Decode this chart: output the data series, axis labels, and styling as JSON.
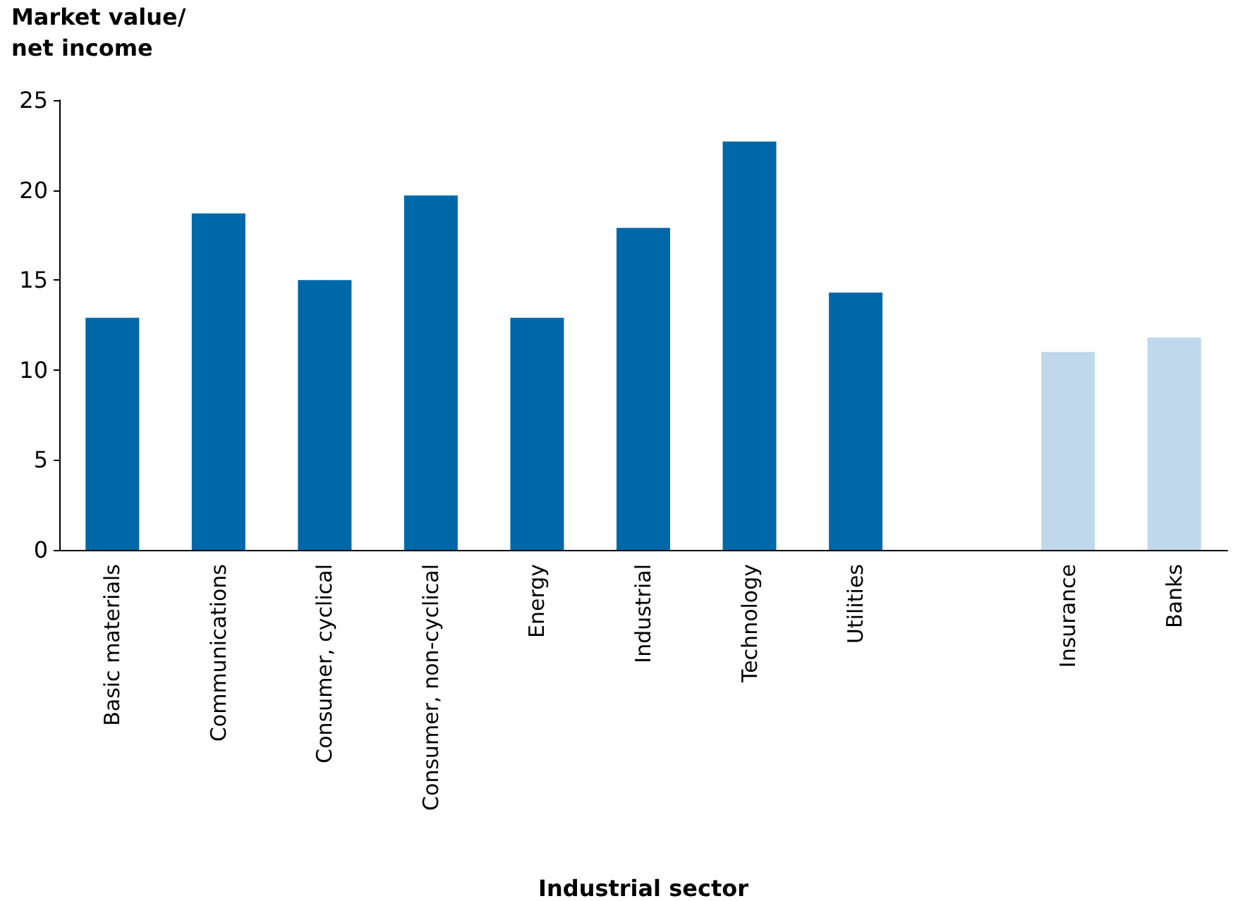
{
  "chart_data": {
    "type": "bar",
    "ylabel": "Market value/\nnet income",
    "xlabel": "Industrial sector",
    "categories": [
      "Basic materials",
      "Communications",
      "Consumer, cyclical",
      "Consumer, non-cyclical",
      "Energy",
      "Industrial",
      "Technology",
      "Utilities",
      null,
      "Insurance",
      "Banks"
    ],
    "values": [
      12.9,
      18.7,
      15.0,
      19.7,
      12.9,
      17.9,
      22.7,
      14.3,
      null,
      11.0,
      11.8
    ],
    "colors": [
      "#0068a8",
      "#0068a8",
      "#0068a8",
      "#0068a8",
      "#0068a8",
      "#0068a8",
      "#0068a8",
      "#0068a8",
      "#0068a8",
      "#c0d8ec",
      "#c0d8ec"
    ],
    "ylim": [
      0,
      25
    ],
    "yticks": [
      0,
      5,
      10,
      15,
      20,
      25
    ]
  }
}
